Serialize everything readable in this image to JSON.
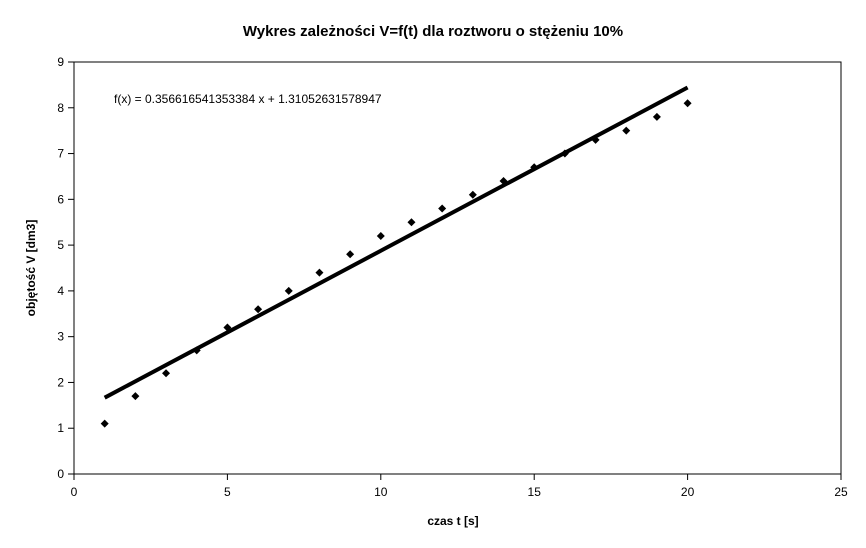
{
  "chart_data": {
    "type": "scatter",
    "title": "Wykres zależności V=f(t) dla roztworu o stężeniu 10%",
    "xlabel": "czas t [s]",
    "ylabel": "objętość V [dm3]",
    "xlim": [
      0,
      25
    ],
    "ylim": [
      0,
      9
    ],
    "x_ticks": [
      0,
      5,
      10,
      15,
      20,
      25
    ],
    "y_ticks": [
      0,
      1,
      2,
      3,
      4,
      5,
      6,
      7,
      8,
      9
    ],
    "grid": false,
    "legend": "none",
    "series": [
      {
        "marker": "diamond",
        "color": "#000000",
        "points": [
          {
            "x": 1,
            "y": 1.1
          },
          {
            "x": 2,
            "y": 1.7
          },
          {
            "x": 3,
            "y": 2.2
          },
          {
            "x": 4,
            "y": 2.7
          },
          {
            "x": 5,
            "y": 3.2
          },
          {
            "x": 6,
            "y": 3.6
          },
          {
            "x": 7,
            "y": 4.0
          },
          {
            "x": 8,
            "y": 4.4
          },
          {
            "x": 9,
            "y": 4.8
          },
          {
            "x": 10,
            "y": 5.2
          },
          {
            "x": 11,
            "y": 5.5
          },
          {
            "x": 12,
            "y": 5.8
          },
          {
            "x": 13,
            "y": 6.1
          },
          {
            "x": 14,
            "y": 6.4
          },
          {
            "x": 15,
            "y": 6.7
          },
          {
            "x": 16,
            "y": 7.0
          },
          {
            "x": 17,
            "y": 7.3
          },
          {
            "x": 18,
            "y": 7.5
          },
          {
            "x": 19,
            "y": 7.8
          },
          {
            "x": 20,
            "y": 8.1
          }
        ]
      }
    ],
    "trendline": {
      "type": "linear",
      "slope": 0.356616541353384,
      "intercept": 1.31052631578947,
      "x_range": [
        1,
        20
      ],
      "color": "#000000",
      "equation_text": "f(x) = 0.356616541353384 x + 1.31052631578947"
    }
  }
}
